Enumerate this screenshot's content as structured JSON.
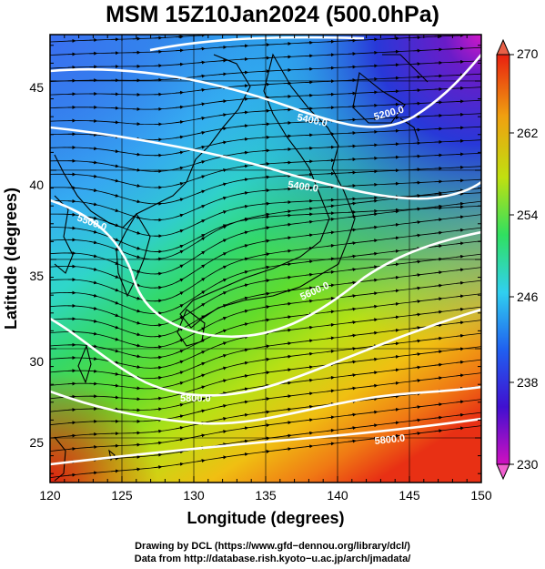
{
  "title": "MSM 15Z10Jan2024 (500.0hPa)",
  "x_axis": {
    "label": "Longitude (degrees)",
    "ticks": [
      "120",
      "125",
      "130",
      "135",
      "140",
      "145",
      "150"
    ]
  },
  "y_axis": {
    "label": "Latitude  (degrees)",
    "ticks": [
      "45",
      "40",
      "35",
      "30",
      "25"
    ]
  },
  "colorbar": {
    "ticks": [
      "270",
      "262",
      "254",
      "246",
      "238",
      "230"
    ],
    "min": 230,
    "max": 270,
    "colors": [
      "#d010c0",
      "#4010d0",
      "#2060f0",
      "#30d0f0",
      "#30e060",
      "#c0e010",
      "#f0a010",
      "#e82010"
    ]
  },
  "contour_labels": [
    "5200.0",
    "5400.0",
    "5400.0",
    "5500.0",
    "5600.0",
    "5800.0",
    "5800.0"
  ],
  "credits": {
    "line1": "Drawing by DCL (https://www.gfd−dennou.org/library/dcl/)",
    "line2": "Data from http://database.rish.kyoto−u.ac.jp/arch/jmadata/"
  }
}
